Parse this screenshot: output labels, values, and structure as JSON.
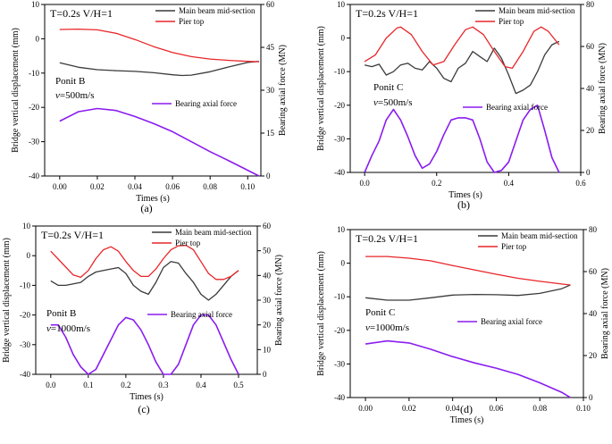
{
  "figure": {
    "background": "#ffffff"
  },
  "colors": {
    "main_beam": "#3a3a3a",
    "pier_top": "#e8262a",
    "bearing": "#8a1cf0",
    "axis": "#000000"
  },
  "chart_data": [
    {
      "id": "a",
      "type": "line",
      "panel_label": "(a)",
      "header": "T=0.2s   V/H=1",
      "point_label": "Ponit B",
      "speed_label": "v=500m/s",
      "xlabel": "Times (s)",
      "ylabel_left": "Bridge vertical displacement (mm)",
      "ylabel_right": "Bearing axial force (MN)",
      "xlim": [
        -0.008,
        0.107
      ],
      "ylim_left": [
        -40,
        10
      ],
      "ylim_right": [
        0,
        60
      ],
      "xticks": [
        0.0,
        0.02,
        0.04,
        0.06,
        0.08,
        0.1
      ],
      "xtick_labels": [
        "0.00",
        "0.02",
        "0.04",
        "0.06",
        "0.08",
        "0.10"
      ],
      "yticks_left": [
        -40,
        -30,
        -20,
        -10,
        0,
        10
      ],
      "yticks_right": [
        0,
        15,
        30,
        45,
        60
      ],
      "legend": [
        "Main beam mid-section",
        "Pier top"
      ],
      "legend_bearing": "Bearing axial force",
      "series": [
        {
          "name": "Main beam mid-section",
          "axis": "left",
          "color": "#3a3a3a",
          "x": [
            0,
            0.01,
            0.02,
            0.03,
            0.04,
            0.05,
            0.06,
            0.065,
            0.07,
            0.08,
            0.09,
            0.1,
            0.106
          ],
          "y": [
            -7,
            -8.3,
            -9,
            -9.3,
            -9.5,
            -9.9,
            -10.5,
            -10.7,
            -10.6,
            -9.6,
            -8.2,
            -6.9,
            -6.6
          ]
        },
        {
          "name": "Pier top",
          "axis": "left",
          "color": "#e8262a",
          "x": [
            0,
            0.01,
            0.02,
            0.03,
            0.04,
            0.05,
            0.06,
            0.07,
            0.08,
            0.09,
            0.1,
            0.106
          ],
          "y": [
            2.7,
            2.8,
            2.6,
            1.6,
            -0.2,
            -2.3,
            -4.0,
            -5.2,
            -5.9,
            -6.3,
            -6.6,
            -6.7
          ]
        },
        {
          "name": "Bearing axial force",
          "axis": "right",
          "color": "#8a1cf0",
          "x": [
            0,
            0.01,
            0.02,
            0.03,
            0.04,
            0.05,
            0.06,
            0.07,
            0.08,
            0.09,
            0.1,
            0.106
          ],
          "y": [
            19.2,
            22.5,
            23.6,
            22.9,
            20.8,
            18.3,
            15.5,
            12.0,
            8.5,
            5.3,
            2.0,
            0
          ]
        }
      ]
    },
    {
      "id": "b",
      "type": "line",
      "panel_label": "(b)",
      "header": "T=0.2s   V/H=1",
      "point_label": "Ponit C",
      "speed_label": "v=500m/s",
      "xlabel": "Times (s)",
      "ylabel_left": "Bridge vertical displacement (mm)",
      "ylabel_right": "Bearing axial force (MN)",
      "xlim": [
        -0.04,
        0.6
      ],
      "ylim_left": [
        -40,
        10
      ],
      "ylim_right": [
        0,
        80
      ],
      "xticks": [
        0.0,
        0.2,
        0.4,
        0.6
      ],
      "xtick_labels": [
        "0.0",
        "0.2",
        "0.4",
        "0.6"
      ],
      "yticks_left": [
        -40,
        -30,
        -20,
        -10,
        0,
        10
      ],
      "yticks_right": [
        0,
        20,
        40,
        60,
        80
      ],
      "legend": [
        "Main beam mid-section",
        "Pier top"
      ],
      "legend_bearing": "Bearing axial force",
      "series": [
        {
          "name": "Main beam mid-section",
          "axis": "left",
          "color": "#3a3a3a",
          "x": [
            0,
            0.02,
            0.04,
            0.06,
            0.08,
            0.1,
            0.12,
            0.14,
            0.16,
            0.18,
            0.2,
            0.22,
            0.24,
            0.26,
            0.28,
            0.3,
            0.32,
            0.34,
            0.36,
            0.38,
            0.4,
            0.42,
            0.44,
            0.46,
            0.48,
            0.5,
            0.52,
            0.54
          ],
          "y": [
            -8,
            -8.5,
            -7.8,
            -11,
            -10,
            -8,
            -7.5,
            -9,
            -9.5,
            -7,
            -9,
            -12,
            -13,
            -9,
            -7.5,
            -4,
            -5.5,
            -7,
            -3,
            -6,
            -11,
            -16.5,
            -15.5,
            -14,
            -10,
            -5,
            -2,
            -1
          ]
        },
        {
          "name": "Pier top",
          "axis": "left",
          "color": "#e8262a",
          "x": [
            0,
            0.03,
            0.06,
            0.09,
            0.1,
            0.13,
            0.16,
            0.19,
            0.22,
            0.25,
            0.28,
            0.3,
            0.33,
            0.36,
            0.39,
            0.41,
            0.44,
            0.47,
            0.49,
            0.51,
            0.54
          ],
          "y": [
            -7,
            -5,
            0,
            3,
            3.3,
            1,
            -4,
            -8,
            -7,
            -2,
            2.5,
            3.3,
            1,
            -4,
            -8.5,
            -9,
            -4,
            2,
            3.3,
            2,
            -2
          ]
        },
        {
          "name": "Bearing axial force",
          "axis": "right",
          "color": "#8a1cf0",
          "x": [
            0,
            0.02,
            0.04,
            0.06,
            0.08,
            0.1,
            0.12,
            0.14,
            0.16,
            0.18,
            0.2,
            0.22,
            0.24,
            0.26,
            0.28,
            0.3,
            0.32,
            0.34,
            0.36,
            0.38,
            0.4,
            0.42,
            0.44,
            0.46,
            0.48,
            0.5,
            0.52,
            0.54
          ],
          "y": [
            0,
            8,
            15,
            25,
            30,
            25,
            17,
            8,
            2,
            4,
            10,
            18,
            25,
            26,
            26,
            25,
            16,
            5,
            0,
            1,
            5,
            15,
            25,
            30,
            32,
            20,
            7,
            0
          ]
        }
      ]
    },
    {
      "id": "c",
      "type": "line",
      "panel_label": "(c)",
      "header": "T=0.2s   V/H=1",
      "point_label": "Ponit B",
      "speed_label": "v=1000m/s",
      "xlabel": "Times (s)",
      "ylabel_left": "Bridge vertical displacement (mm)",
      "ylabel_right": "Bearing axial force (MN)",
      "xlim": [
        -0.04,
        0.55
      ],
      "ylim_left": [
        -40,
        10
      ],
      "ylim_right": [
        0,
        60
      ],
      "xticks": [
        0.0,
        0.1,
        0.2,
        0.3,
        0.4,
        0.5
      ],
      "xtick_labels": [
        "0.0",
        "0.1",
        "0.2",
        "0.3",
        "0.4",
        "0.5"
      ],
      "yticks_left": [
        -40,
        -30,
        -20,
        -10,
        0,
        10
      ],
      "yticks_right": [
        0,
        10,
        20,
        30,
        40,
        50,
        60
      ],
      "legend": [
        "Main beam mid-section",
        "Pier top"
      ],
      "legend_bearing": "Bearing axial force",
      "series": [
        {
          "name": "Main beam mid-section",
          "axis": "left",
          "color": "#3a3a3a",
          "x": [
            0,
            0.02,
            0.04,
            0.06,
            0.08,
            0.1,
            0.12,
            0.14,
            0.16,
            0.18,
            0.2,
            0.22,
            0.24,
            0.26,
            0.28,
            0.3,
            0.32,
            0.34,
            0.36,
            0.38,
            0.4,
            0.42,
            0.44,
            0.46,
            0.48,
            0.5
          ],
          "y": [
            -8.5,
            -10,
            -10,
            -9.5,
            -9,
            -7,
            -5.5,
            -5,
            -4.5,
            -4,
            -6,
            -10,
            -12,
            -13,
            -9,
            -4,
            -2,
            -2.5,
            -6,
            -9,
            -13,
            -15,
            -13,
            -10,
            -7,
            -5
          ]
        },
        {
          "name": "Pier top",
          "axis": "left",
          "color": "#e8262a",
          "x": [
            0,
            0.03,
            0.06,
            0.08,
            0.1,
            0.12,
            0.14,
            0.16,
            0.18,
            0.2,
            0.22,
            0.24,
            0.26,
            0.28,
            0.3,
            0.32,
            0.34,
            0.36,
            0.38,
            0.4,
            0.42,
            0.44,
            0.46,
            0.48,
            0.5
          ],
          "y": [
            1.5,
            -2.5,
            -6.5,
            -7.3,
            -5,
            -1,
            2,
            3,
            1.5,
            -2,
            -5,
            -7,
            -7,
            -4.5,
            -1,
            2,
            3.3,
            3.5,
            2,
            -2,
            -6,
            -8,
            -8,
            -7,
            -5
          ]
        },
        {
          "name": "Bearing axial force",
          "axis": "right",
          "color": "#8a1cf0",
          "x": [
            0,
            0.02,
            0.04,
            0.06,
            0.08,
            0.1,
            0.12,
            0.14,
            0.16,
            0.18,
            0.2,
            0.22,
            0.24,
            0.26,
            0.28,
            0.3,
            0.32,
            0.34,
            0.36,
            0.38,
            0.4,
            0.42,
            0.44,
            0.46,
            0.48,
            0.5
          ],
          "y": [
            20,
            20,
            15,
            8,
            3,
            0,
            2,
            8,
            14,
            20,
            23,
            22,
            18,
            12,
            5,
            0,
            0,
            4,
            12,
            20,
            24,
            24,
            20,
            13,
            6,
            0
          ]
        }
      ]
    },
    {
      "id": "d",
      "type": "line",
      "panel_label": "(d)",
      "header": "T=0.2s   V/H=1",
      "point_label": "Ponit C",
      "speed_label": "v=1000m/s",
      "xlabel": "Times (s)",
      "ylabel_left": "Bridge vertical displacement (mm)",
      "ylabel_right": "Bearing axial force (MN)",
      "xlim": [
        -0.007,
        0.1
      ],
      "ylim_left": [
        -40,
        10
      ],
      "ylim_right": [
        0,
        80
      ],
      "xticks": [
        0.0,
        0.02,
        0.04,
        0.06,
        0.08,
        0.1
      ],
      "xtick_labels": [
        "0.00",
        "0.02",
        "0.04",
        "0.06",
        "0.08",
        "0.10"
      ],
      "yticks_left": [
        -40,
        -30,
        -20,
        -10,
        0,
        10
      ],
      "yticks_right": [
        0,
        20,
        40,
        60,
        80
      ],
      "legend": [
        "Main beam mid-section",
        "Pier top"
      ],
      "legend_bearing": "Bearing axial force",
      "series": [
        {
          "name": "Main beam mid-section",
          "axis": "left",
          "color": "#3a3a3a",
          "x": [
            0,
            0.01,
            0.02,
            0.03,
            0.04,
            0.05,
            0.06,
            0.07,
            0.08,
            0.09,
            0.094
          ],
          "y": [
            -10.3,
            -11,
            -11,
            -10.3,
            -9.5,
            -9.3,
            -9.4,
            -9.6,
            -9.0,
            -7.6,
            -6.5
          ]
        },
        {
          "name": "Pier top",
          "axis": "left",
          "color": "#e8262a",
          "x": [
            0,
            0.01,
            0.02,
            0.03,
            0.04,
            0.05,
            0.06,
            0.07,
            0.08,
            0.09,
            0.094
          ],
          "y": [
            2,
            2,
            1.5,
            0.7,
            -0.7,
            -2,
            -3.3,
            -4.5,
            -5.4,
            -6.2,
            -6.5
          ]
        },
        {
          "name": "Bearing axial force",
          "axis": "right",
          "color": "#8a1cf0",
          "x": [
            0,
            0.01,
            0.02,
            0.03,
            0.04,
            0.05,
            0.06,
            0.07,
            0.08,
            0.09,
            0.094
          ],
          "y": [
            25.5,
            27,
            26,
            23,
            19.5,
            16.5,
            14,
            11,
            7,
            2.5,
            0
          ]
        }
      ]
    }
  ]
}
